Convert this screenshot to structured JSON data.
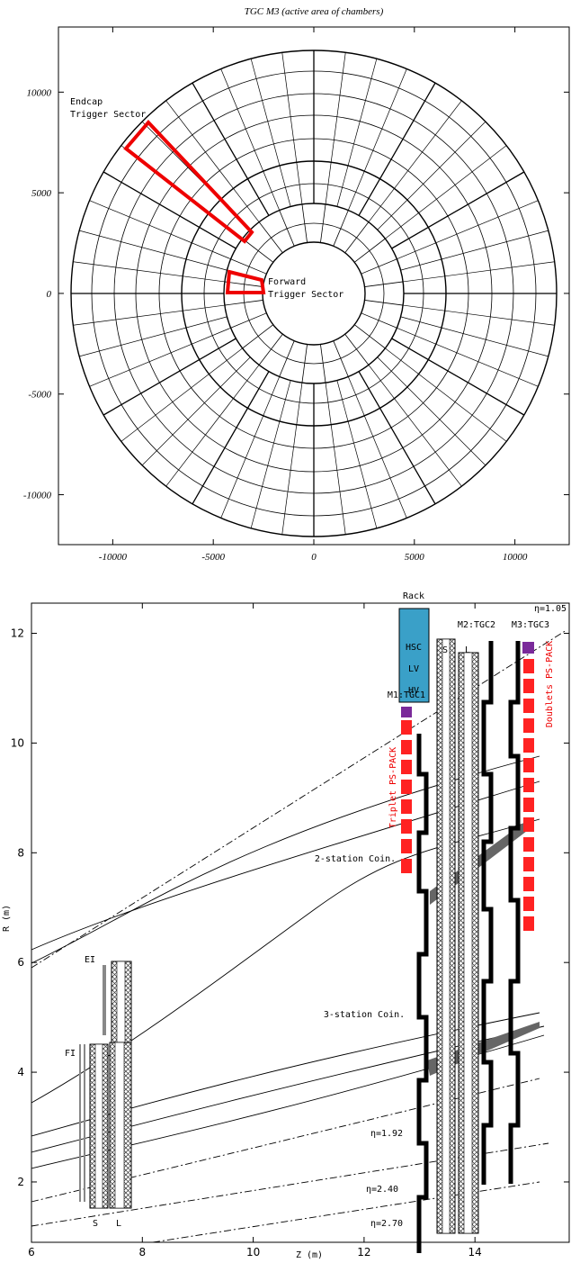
{
  "top": {
    "title": "TGC M3 (active area of chambers)",
    "xaxis": {
      "lim": [
        -12700,
        12700
      ],
      "ticks": [
        -10000,
        -5000,
        0,
        5000,
        10000
      ]
    },
    "yaxis": {
      "lim": [
        -12480,
        13235
      ],
      "ticks": [
        -10000,
        -5000,
        0,
        5000,
        10000
      ]
    },
    "annotations": {
      "endcap": [
        "Endcap",
        "Trigger Sector"
      ],
      "forward": [
        "Forward",
        "Trigger Sector"
      ]
    }
  },
  "bottom": {
    "xaxis": {
      "label": "Z (m)",
      "lim": [
        6,
        15.7
      ],
      "ticks": [
        6,
        8,
        10,
        12,
        14
      ]
    },
    "yaxis": {
      "label": "R (m)",
      "lim": [
        0.9,
        12.55
      ],
      "ticks": [
        2,
        4,
        6,
        8,
        10,
        12
      ]
    },
    "rack": {
      "title": "Rack",
      "items": [
        "HSC",
        "LV",
        "HV"
      ]
    },
    "stations": [
      "M1:TGC1",
      "M2:TGC2",
      "M3:TGC3"
    ],
    "doublet_labels": [
      "S",
      "L"
    ],
    "ps_pack": [
      "Triplet PS-PACK",
      "Doublets PS-PACK"
    ],
    "coincidence": [
      "2-station Coin.",
      "3-station Coin."
    ],
    "eta": [
      "η=1.05",
      "η=1.92",
      "η=2.40",
      "η=2.70"
    ],
    "inner": [
      "EI",
      "FI"
    ],
    "inner_labels": [
      "S",
      "L"
    ]
  }
}
